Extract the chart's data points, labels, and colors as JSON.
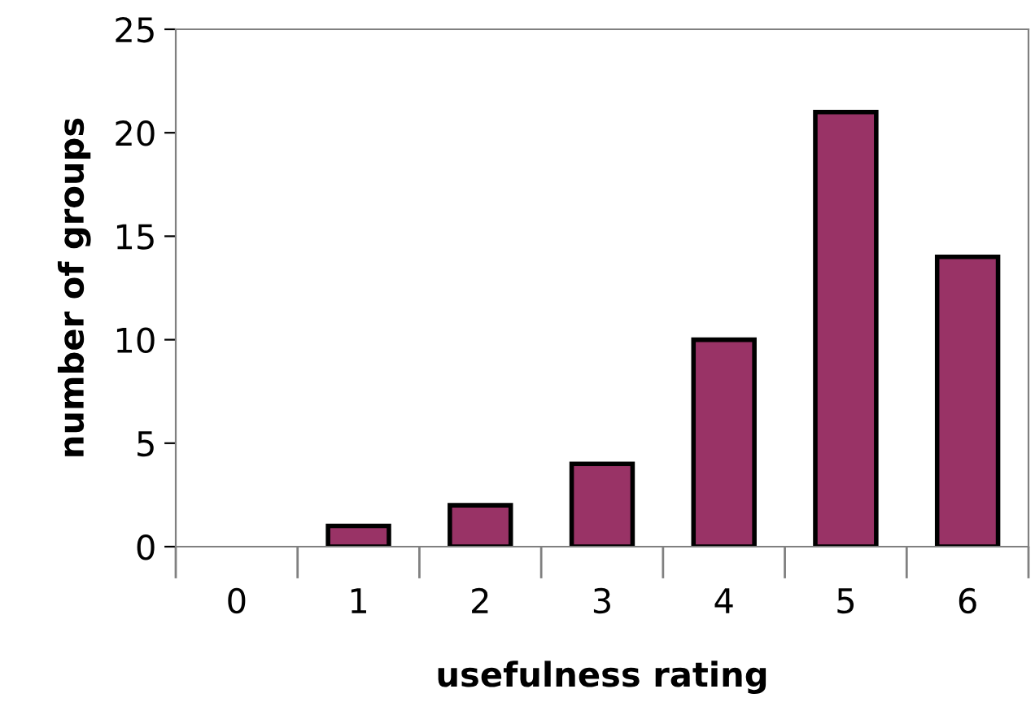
{
  "chart_data": {
    "type": "bar",
    "xlabel": "usefulness rating",
    "ylabel": "number of groups",
    "categories": [
      "0",
      "1",
      "2",
      "3",
      "4",
      "5",
      "6"
    ],
    "values": [
      0,
      1,
      2,
      4,
      10,
      21,
      14
    ],
    "color": "#993366",
    "ylim": [
      0,
      25
    ],
    "yticks": [
      0,
      5,
      10,
      15,
      20,
      25
    ],
    "grid": false,
    "legend": false
  }
}
